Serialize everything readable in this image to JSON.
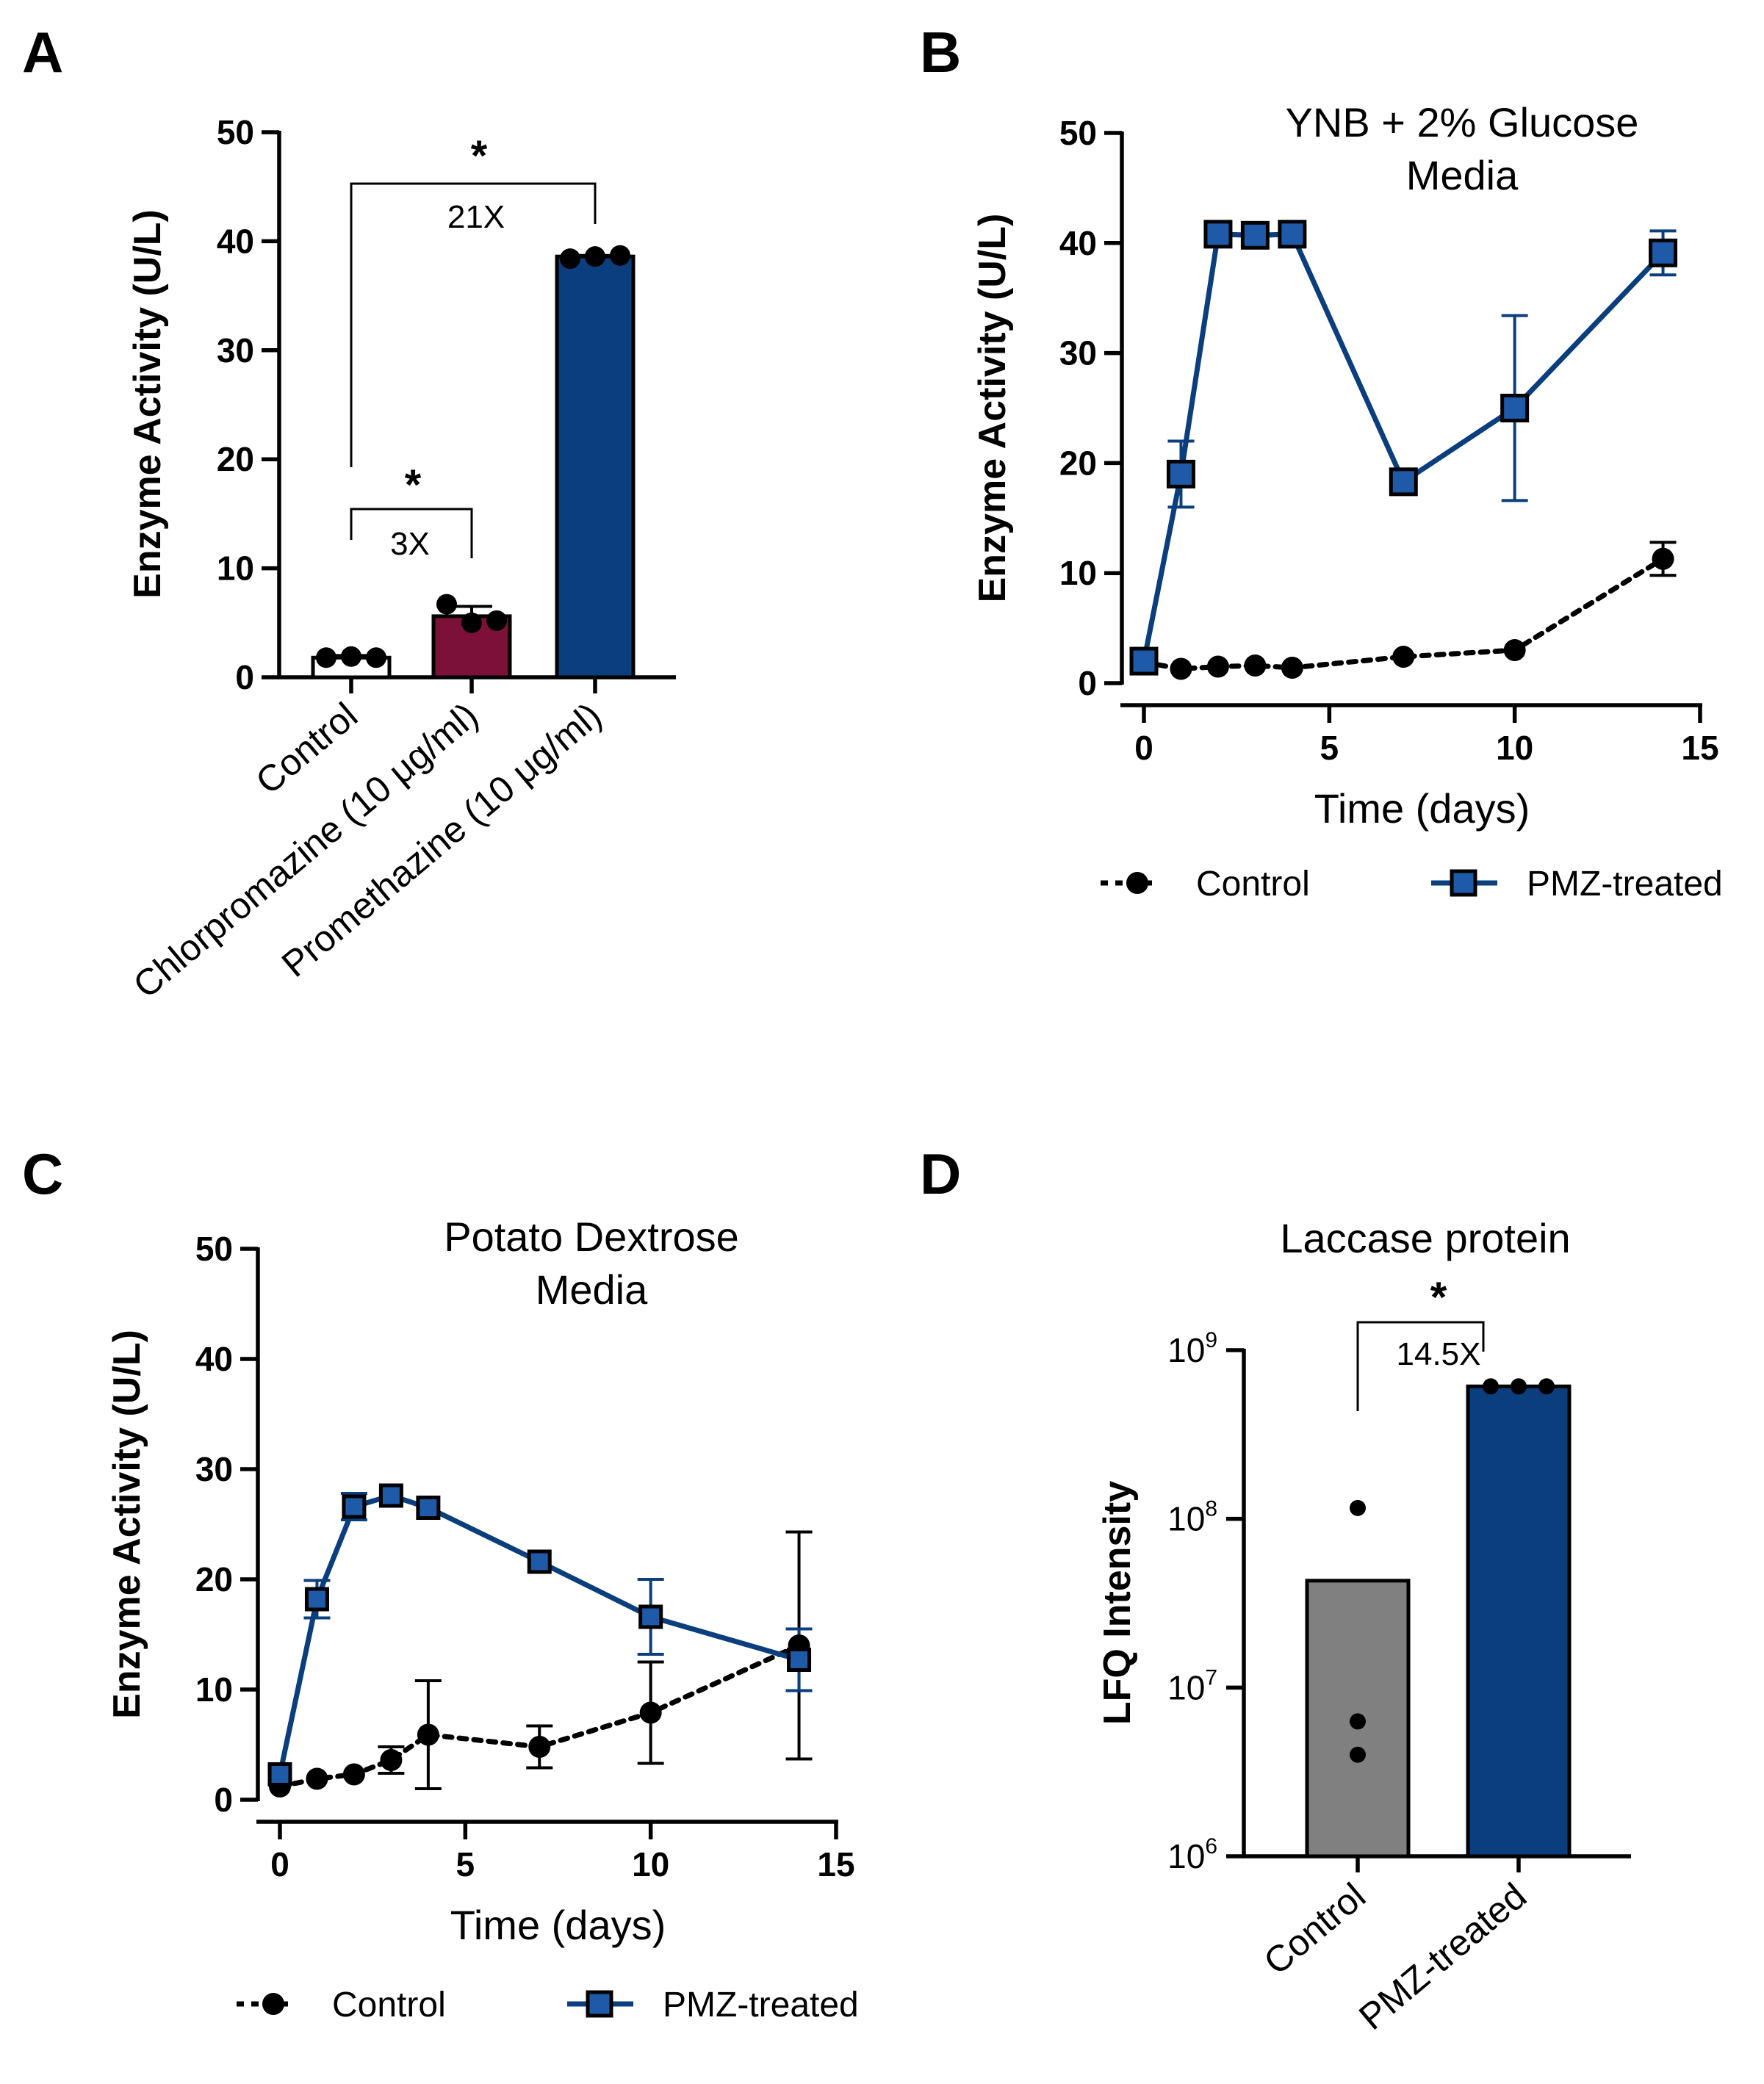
{
  "chart_data": [
    {
      "panel": "A",
      "type": "bar",
      "title": "",
      "ylabel": "Enzyme Activity (U/L)",
      "xlabel": "",
      "ylim": [
        0,
        50
      ],
      "yticks": [
        "0",
        "10",
        "20",
        "30",
        "40",
        "50"
      ],
      "categories": [
        "Control",
        "Chlorpromazine (10 μg/ml)",
        "Promethazine (10 μg/ml)"
      ],
      "values": [
        1.8,
        5.6,
        38.6
      ],
      "errors": [
        0.2,
        0.9,
        0.1
      ],
      "points": [
        [
          1.8,
          1.9,
          1.8
        ],
        [
          6.7,
          5.0,
          5.2
        ],
        [
          38.4,
          38.6,
          38.7
        ]
      ],
      "bar_colors": [
        "#ffffff",
        "#7b1138",
        "#0b3e7d"
      ],
      "annotations": [
        {
          "from": "Control",
          "to": "Chlorpromazine (10 μg/ml)",
          "stars": "*",
          "label": "3X"
        },
        {
          "from": "Control",
          "to": "Promethazine (10 μg/ml)",
          "stars": "*",
          "label": "21X"
        }
      ]
    },
    {
      "panel": "B",
      "type": "line",
      "title_lines": [
        "YNB + 2% Glucose",
        "Media"
      ],
      "xlabel": "Time (days)",
      "ylabel": "Enzyme Activity (U/L)",
      "xlim": [
        0,
        15
      ],
      "ylim": [
        0,
        50
      ],
      "xticks": [
        "0",
        "5",
        "10",
        "15"
      ],
      "yticks": [
        "0",
        "10",
        "20",
        "30",
        "40",
        "50"
      ],
      "series": [
        {
          "name": "Control",
          "x": [
            0,
            1,
            2,
            3,
            4,
            7,
            10,
            14
          ],
          "values": [
            1.9,
            1.3,
            1.5,
            1.6,
            1.4,
            2.4,
            3.0,
            11.3
          ],
          "errors": [
            0,
            0,
            0,
            0,
            0,
            0,
            0,
            1.5
          ]
        },
        {
          "name": "PMZ-treated",
          "x": [
            0,
            1,
            2,
            3,
            4,
            7,
            10,
            14
          ],
          "values": [
            2.0,
            19.0,
            40.8,
            40.7,
            40.8,
            18.3,
            25.0,
            39.1
          ],
          "errors": [
            0,
            3.0,
            0,
            0,
            0,
            0,
            8.4,
            2.0
          ]
        }
      ],
      "legend": [
        "Control",
        "PMZ-treated"
      ]
    },
    {
      "panel": "C",
      "type": "line",
      "title_lines": [
        "Potato Dextrose",
        "Media"
      ],
      "xlabel": "Time (days)",
      "ylabel": "Enzyme Activity (U/L)",
      "xlim": [
        0,
        15
      ],
      "ylim": [
        0,
        50
      ],
      "xticks": [
        "0",
        "5",
        "10",
        "15"
      ],
      "yticks": [
        "0",
        "10",
        "20",
        "30",
        "40",
        "50"
      ],
      "series": [
        {
          "name": "Control",
          "x": [
            0,
            1,
            2,
            3,
            4,
            7,
            10,
            14
          ],
          "values": [
            1.2,
            1.9,
            2.3,
            3.6,
            5.9,
            4.8,
            7.9,
            14.0
          ],
          "errors": [
            0,
            0,
            0,
            1.2,
            4.9,
            1.9,
            4.6,
            10.3
          ]
        },
        {
          "name": "PMZ-treated",
          "x": [
            0,
            1,
            2,
            3,
            4,
            7,
            10,
            14
          ],
          "values": [
            2.3,
            18.2,
            26.6,
            27.6,
            26.5,
            21.6,
            16.6,
            12.7
          ],
          "errors": [
            0,
            1.7,
            1.2,
            0,
            0,
            0,
            3.4,
            2.8
          ]
        }
      ],
      "legend": [
        "Control",
        "PMZ-treated"
      ]
    },
    {
      "panel": "D",
      "type": "bar",
      "title": "Laccase protein",
      "ylabel": "LFQ Intensity",
      "xlabel": "",
      "yscale": "log",
      "ylim": [
        1000000,
        1000000000
      ],
      "ytick_base": [
        "10",
        "10",
        "10",
        "10"
      ],
      "ytick_exp": [
        "6",
        "7",
        "8",
        "9"
      ],
      "categories": [
        "Control",
        "PMZ-treated"
      ],
      "values": [
        43000000,
        610000000
      ],
      "points": [
        [
          116000000,
          6300000,
          4000000
        ],
        [
          610000000,
          610000000,
          610000000
        ]
      ],
      "bar_colors": [
        "#808080",
        "#0b3e7d"
      ],
      "annotations": [
        {
          "from": "Control",
          "to": "PMZ-treated",
          "stars": "*",
          "label": "14.5X"
        }
      ]
    }
  ]
}
